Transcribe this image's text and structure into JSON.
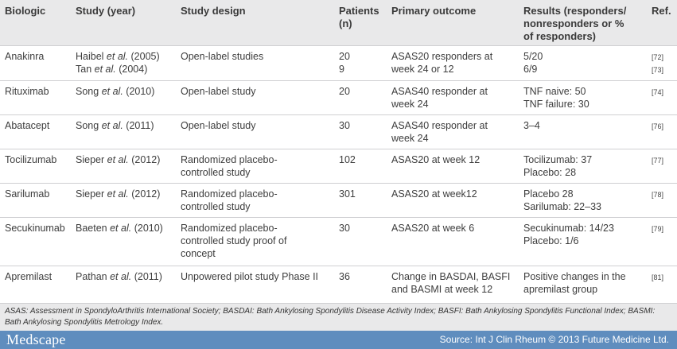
{
  "headers": {
    "biologic": "Biologic",
    "study": "Study (year)",
    "design": "Study design",
    "patients_line1": "Patients",
    "patients_line2": "(n)",
    "outcome": "Primary outcome",
    "results_line1": "Results (responders/",
    "results_line2": "nonresponders or %",
    "results_line3": "of responders)",
    "ref": "Ref."
  },
  "rows": [
    {
      "biologic": "Anakinra",
      "studies": [
        {
          "author": "Haibel",
          "year": "(2005)"
        },
        {
          "author": "Tan",
          "year": "(2004)"
        }
      ],
      "design": [
        "Open-label studies"
      ],
      "patients": [
        "20",
        "9"
      ],
      "outcome": [
        "ASAS20 responders at",
        "week 24 or 12"
      ],
      "results": [
        "5/20",
        "6/9"
      ],
      "refs": [
        "[72]",
        "[73]"
      ]
    },
    {
      "biologic": "Rituximab",
      "studies": [
        {
          "author": "Song",
          "year": "(2010)"
        }
      ],
      "design": [
        "Open-label study"
      ],
      "patients": [
        "20"
      ],
      "outcome": [
        "ASAS40 responder at",
        "week 24"
      ],
      "results": [
        "TNF naive: 50",
        "TNF failure: 30"
      ],
      "refs": [
        "[74]"
      ]
    },
    {
      "biologic": "Abatacept",
      "studies": [
        {
          "author": "Song",
          "year": "(2011)"
        }
      ],
      "design": [
        "Open-label study"
      ],
      "patients": [
        "30"
      ],
      "outcome": [
        "ASAS40 responder at",
        "week 24"
      ],
      "results": [
        "3–4"
      ],
      "refs": [
        "[76]"
      ]
    },
    {
      "biologic": "Tocilizumab",
      "studies": [
        {
          "author": "Sieper",
          "year": "(2012)"
        }
      ],
      "design": [
        "Randomized placebo-",
        "controlled study"
      ],
      "patients": [
        "102"
      ],
      "outcome": [
        "ASAS20 at week 12"
      ],
      "results": [
        "Tocilizumab: 37",
        "Placebo: 28"
      ],
      "refs": [
        "[77]"
      ]
    },
    {
      "biologic": "Sarilumab",
      "studies": [
        {
          "author": "Sieper",
          "year": "(2012)"
        }
      ],
      "design": [
        "Randomized placebo-",
        "controlled study"
      ],
      "patients": [
        "301"
      ],
      "outcome": [
        "ASAS20 at week12"
      ],
      "results": [
        "Placebo 28",
        "Sarilumab: 22–33"
      ],
      "refs": [
        "[78]"
      ]
    },
    {
      "biologic": "Secukinumab",
      "studies": [
        {
          "author": "Baeten",
          "year": "(2010)"
        }
      ],
      "design": [
        "Randomized placebo-",
        "controlled study proof of",
        "concept"
      ],
      "patients": [
        "30"
      ],
      "outcome": [
        "ASAS20 at week 6"
      ],
      "results": [
        "Secukinumab: 14/23",
        "Placebo: 1/6"
      ],
      "refs": [
        "[79]"
      ]
    },
    {
      "biologic": "Apremilast",
      "studies": [
        {
          "author": "Pathan",
          "year": "(2011)"
        }
      ],
      "design": [
        "Unpowered pilot study Phase II"
      ],
      "patients": [
        "36"
      ],
      "outcome": [
        "Change in BASDAI, BASFI",
        "and BASMI at week 12"
      ],
      "results": [
        "Positive changes in the",
        "apremilast group"
      ],
      "refs": [
        "[81]"
      ]
    }
  ],
  "et_al": "et al.",
  "footnote": "ASAS: Assessment in SpondyloArthritis International Society; BASDAI: Bath Ankylosing Spondylitis Disease Activity Index; BASFI: Bath Ankylosing Spondylitis Functional Index; BASMI: Bath Ankylosing Spondylitis Metrology Index.",
  "footer": {
    "logo": "Medscape",
    "source": "Source: Int J Clin Rheum © 2013 Future Medicine Ltd."
  },
  "colors": {
    "header_bg": "#e9e9ea",
    "footer_bar": "#5f8dbe"
  }
}
